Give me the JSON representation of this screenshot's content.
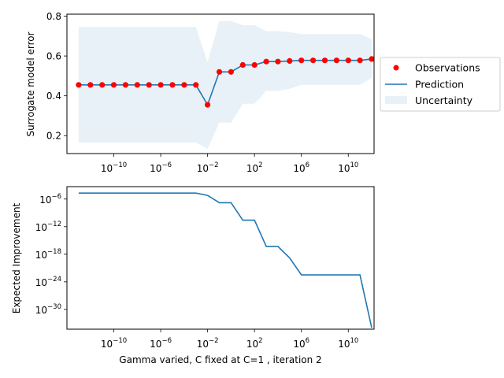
{
  "figure": {
    "xlabel": "Gamma varied, C fixed at C=1 , iteration 2"
  },
  "colors": {
    "observation": "#ff0000",
    "prediction": "#1f77b4",
    "uncertainty": "#1f77b4",
    "axis": "#000000"
  },
  "chart_data": [
    {
      "type": "line",
      "panel": "top",
      "xlabel": "",
      "ylabel": "Surrogate model error",
      "xscale": "log",
      "xlim_exp": [
        -14,
        12.2
      ],
      "ylim": [
        0.11,
        0.81
      ],
      "xticks": [
        {
          "exp": -10,
          "base": "10",
          "sup": "−10"
        },
        {
          "exp": -6,
          "base": "10",
          "sup": "−6"
        },
        {
          "exp": -2,
          "base": "10",
          "sup": "−2"
        },
        {
          "exp": 2,
          "base": "10",
          "sup": "2"
        },
        {
          "exp": 6,
          "base": "10",
          "sup": "6"
        },
        {
          "exp": 10,
          "base": "10",
          "sup": "10"
        }
      ],
      "yticks": [
        {
          "v": 0.2,
          "label": "0.2"
        },
        {
          "v": 0.4,
          "label": "0.4"
        },
        {
          "v": 0.6,
          "label": "0.6"
        },
        {
          "v": 0.8,
          "label": "0.8"
        }
      ],
      "legend": {
        "placement": "outside right",
        "entries": [
          {
            "label": "Observations",
            "kind": "marker"
          },
          {
            "label": "Prediction",
            "kind": "line"
          },
          {
            "label": "Uncertainty",
            "kind": "patch"
          }
        ]
      },
      "series": [
        {
          "name": "Observations",
          "kind": "scatter",
          "x_exp": [
            -13,
            -12,
            -11,
            -10,
            -9,
            -8,
            -7,
            -6,
            -5,
            -4,
            -3,
            -2,
            -1,
            0,
            1,
            2,
            3,
            4,
            5,
            6,
            7,
            8,
            9,
            10,
            11,
            12
          ],
          "y": [
            0.455,
            0.455,
            0.455,
            0.455,
            0.455,
            0.455,
            0.455,
            0.455,
            0.455,
            0.455,
            0.455,
            0.355,
            0.52,
            0.52,
            0.555,
            0.555,
            0.572,
            0.572,
            0.575,
            0.578,
            0.578,
            0.578,
            0.578,
            0.578,
            0.578,
            0.585
          ]
        },
        {
          "name": "Prediction",
          "kind": "line",
          "x_exp": [
            -13,
            -12,
            -11,
            -10,
            -9,
            -8,
            -7,
            -6,
            -5,
            -4,
            -3,
            -2,
            -1,
            0,
            1,
            2,
            3,
            4,
            5,
            6,
            7,
            8,
            9,
            10,
            11,
            12
          ],
          "y": [
            0.455,
            0.455,
            0.455,
            0.455,
            0.455,
            0.455,
            0.455,
            0.455,
            0.455,
            0.455,
            0.455,
            0.355,
            0.52,
            0.52,
            0.555,
            0.555,
            0.572,
            0.572,
            0.575,
            0.578,
            0.578,
            0.578,
            0.578,
            0.578,
            0.578,
            0.585
          ]
        },
        {
          "name": "Uncertainty",
          "kind": "band",
          "x_exp": [
            -13,
            -12,
            -11,
            -10,
            -9,
            -8,
            -7,
            -6,
            -5,
            -4,
            -3,
            -2,
            -1,
            0,
            1,
            2,
            3,
            4,
            5,
            6,
            7,
            8,
            9,
            10,
            11,
            12
          ],
          "lower": [
            0.165,
            0.165,
            0.165,
            0.165,
            0.165,
            0.165,
            0.165,
            0.165,
            0.165,
            0.165,
            0.165,
            0.135,
            0.265,
            0.265,
            0.36,
            0.36,
            0.425,
            0.425,
            0.435,
            0.455,
            0.455,
            0.455,
            0.455,
            0.455,
            0.455,
            0.49
          ],
          "upper": [
            0.745,
            0.745,
            0.745,
            0.745,
            0.745,
            0.745,
            0.745,
            0.745,
            0.745,
            0.745,
            0.745,
            0.57,
            0.775,
            0.775,
            0.755,
            0.755,
            0.725,
            0.725,
            0.72,
            0.71,
            0.71,
            0.71,
            0.71,
            0.71,
            0.71,
            0.685
          ]
        }
      ]
    },
    {
      "type": "line",
      "panel": "bottom",
      "xlabel": "Gamma varied, C fixed at C=1 , iteration 2",
      "ylabel": "Expected Improvement",
      "xscale": "log",
      "yscale": "log",
      "xlim_exp": [
        -14,
        12.2
      ],
      "ylim_exp": [
        -34.3,
        -3.3
      ],
      "xticks": [
        {
          "exp": -10,
          "base": "10",
          "sup": "−10"
        },
        {
          "exp": -6,
          "base": "10",
          "sup": "−6"
        },
        {
          "exp": -2,
          "base": "10",
          "sup": "−2"
        },
        {
          "exp": 2,
          "base": "10",
          "sup": "2"
        },
        {
          "exp": 6,
          "base": "10",
          "sup": "6"
        },
        {
          "exp": 10,
          "base": "10",
          "sup": "10"
        }
      ],
      "yticks": [
        {
          "exp": -6,
          "base": "10",
          "sup": "−6"
        },
        {
          "exp": -12,
          "base": "10",
          "sup": "−12"
        },
        {
          "exp": -18,
          "base": "10",
          "sup": "−18"
        },
        {
          "exp": -24,
          "base": "10",
          "sup": "−24"
        },
        {
          "exp": -30,
          "base": "10",
          "sup": "−30"
        }
      ],
      "series": [
        {
          "name": "",
          "x_exp": [
            -13,
            -3,
            -2,
            -1,
            0,
            1,
            2,
            3,
            4,
            5,
            6,
            7,
            8,
            9,
            10,
            11,
            12
          ],
          "y_exp": [
            -4.7,
            -4.7,
            -5.2,
            -6.8,
            -6.8,
            -10.6,
            -10.6,
            -16.3,
            -16.3,
            -18.8,
            -22.5,
            -22.5,
            -22.5,
            -22.5,
            -22.5,
            -22.5,
            -34.0
          ]
        }
      ]
    }
  ]
}
